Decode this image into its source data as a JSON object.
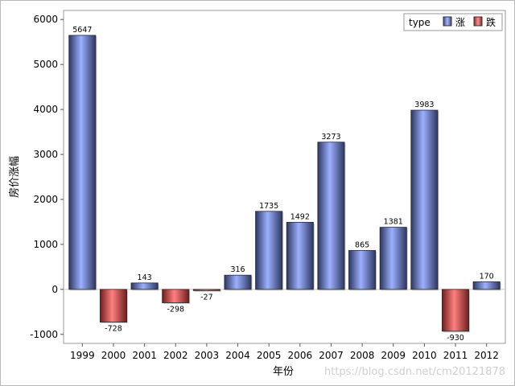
{
  "chart_data": {
    "type": "bar",
    "categories": [
      "1999",
      "2000",
      "2001",
      "2002",
      "2003",
      "2004",
      "2005",
      "2006",
      "2007",
      "2008",
      "2009",
      "2010",
      "2011",
      "2012"
    ],
    "values": [
      5647,
      -728,
      143,
      -298,
      -27,
      316,
      1735,
      1492,
      3273,
      865,
      1381,
      3983,
      -930,
      170
    ],
    "types": [
      "涨",
      "跌",
      "涨",
      "跌",
      "跌",
      "涨",
      "涨",
      "涨",
      "涨",
      "涨",
      "涨",
      "涨",
      "跌",
      "涨"
    ],
    "xlabel": "年份",
    "ylabel": "房价涨幅",
    "ylim": [
      -1200,
      6200
    ],
    "yticks": [
      -1000,
      0,
      1000,
      2000,
      3000,
      4000,
      5000,
      6000
    ],
    "grid": false,
    "legend": {
      "title": "type",
      "placement": "top-right",
      "entries": [
        {
          "name": "涨",
          "color": "#7f93e6"
        },
        {
          "name": "跌",
          "color": "#e05a5a"
        }
      ]
    },
    "colors": {
      "up": "#7f93e6",
      "down": "#e05a5a"
    }
  },
  "watermark": "https://blog.csdn.net/cm20121878"
}
